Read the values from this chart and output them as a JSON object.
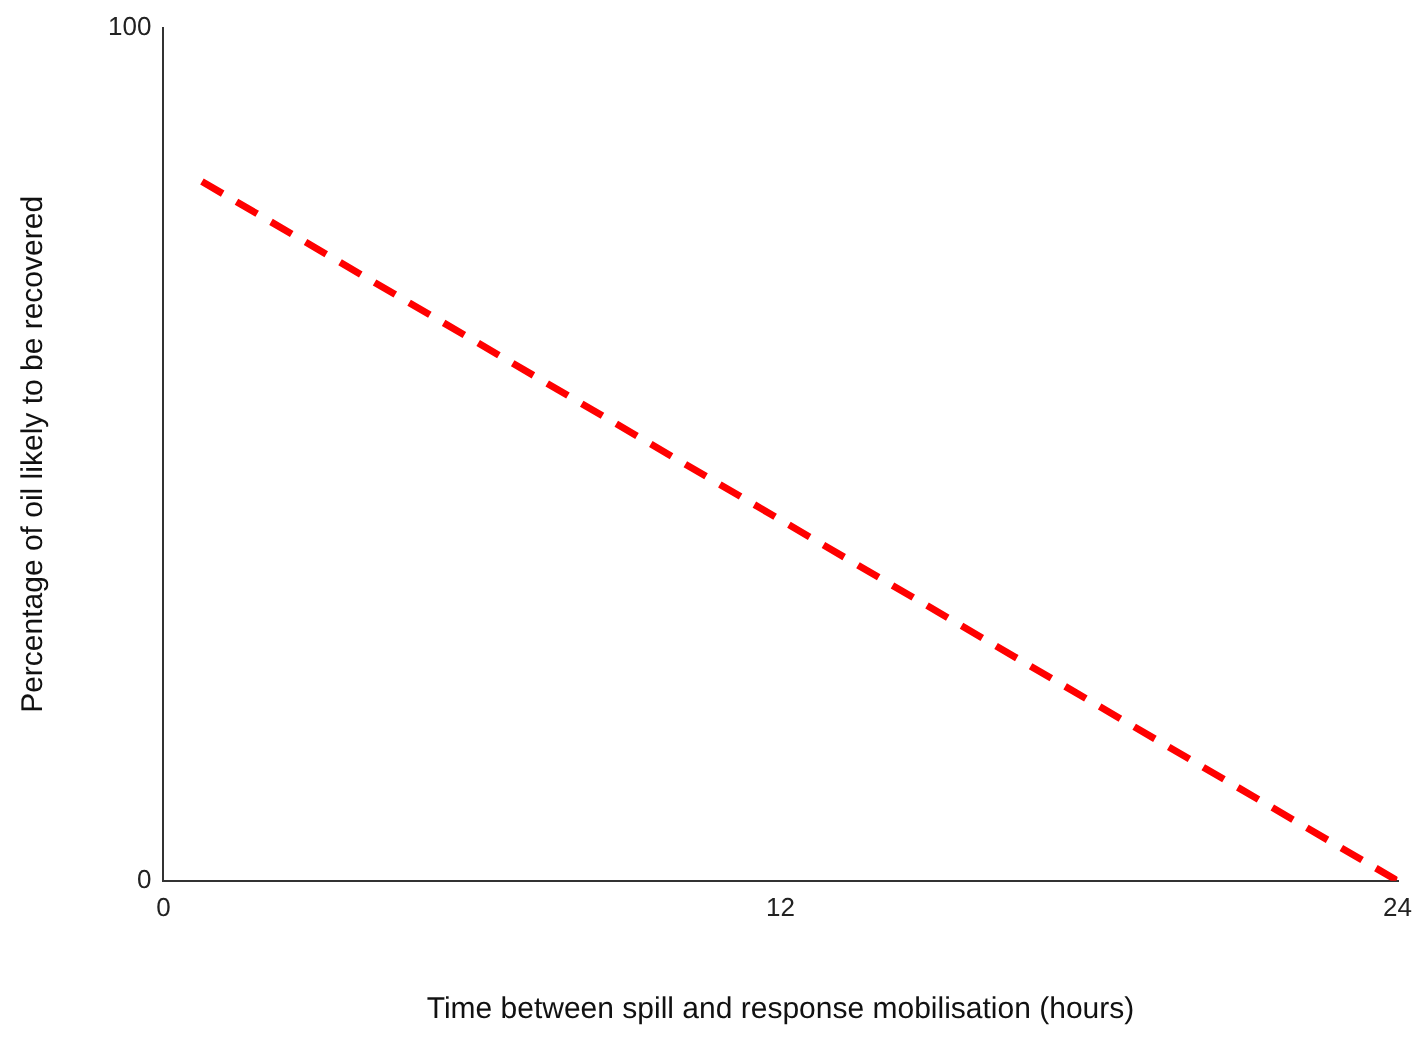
{
  "chart_data": {
    "type": "line",
    "xlabel": "Time between spill and response mobilisation (hours)",
    "ylabel": "Percentage of oil likely to be recovered",
    "x": [
      0.75,
      24
    ],
    "series": [
      {
        "color": "#ff0000",
        "values": [
          82,
          0
        ]
      }
    ],
    "xlim": [
      0,
      24
    ],
    "xticks": [
      0,
      12,
      24
    ],
    "ylim": [
      0,
      100
    ],
    "yticks": [
      0,
      100
    ],
    "grid": false,
    "legend": false,
    "marker": "none",
    "line_style": "dashed"
  }
}
